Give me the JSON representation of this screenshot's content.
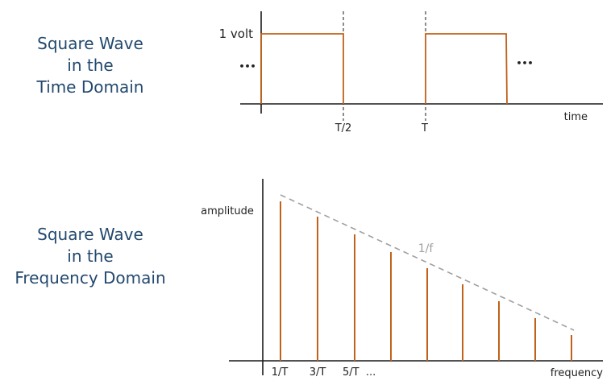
{
  "time_domain": {
    "title_lines": [
      "Square Wave",
      "in the",
      "Time Domain"
    ],
    "amplitude_label": "1 volt",
    "ellipsis_left": "•••",
    "ellipsis_right": "•••",
    "tick_labels": [
      "T/2",
      "T"
    ],
    "x_axis_label": "time"
  },
  "frequency_domain": {
    "title_lines": [
      "Square Wave",
      "in the",
      "Frequency Domain"
    ],
    "y_axis_label": "amplitude",
    "x_axis_label": "frequency",
    "tick_labels": [
      "1/T",
      "3/T",
      "5/T  ..."
    ],
    "envelope_label": "1/f"
  },
  "colors": {
    "title": "#23496e",
    "signal": "#c0621a",
    "axis": "#1a1a1a",
    "envelope": "#a0a0a0",
    "label": "#222222"
  }
}
